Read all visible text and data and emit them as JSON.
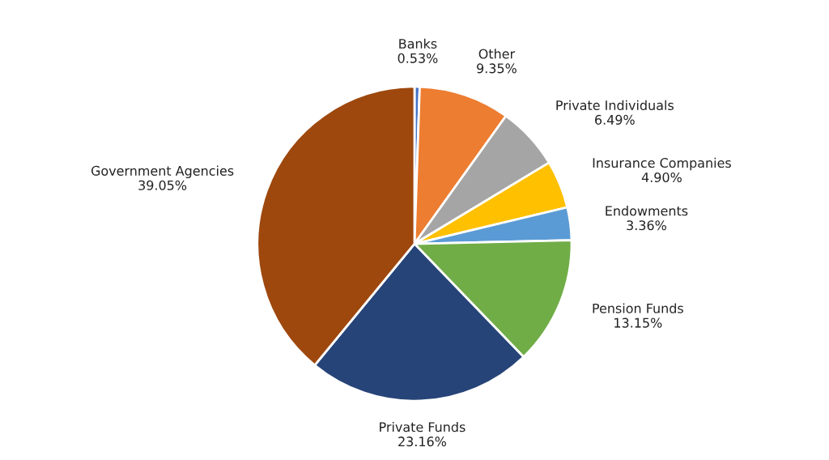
{
  "chart_data": {
    "type": "pie",
    "categories": [
      "Banks",
      "Other",
      "Private Individuals",
      "Insurance Companies",
      "Endowments",
      "Pension Funds",
      "Private Funds",
      "Government Agencies"
    ],
    "values": [
      0.53,
      9.35,
      6.49,
      4.9,
      3.36,
      13.15,
      23.16,
      39.05
    ],
    "value_labels": [
      "0.53%",
      "9.35%",
      "6.49%",
      "4.90%",
      "3.36%",
      "13.15%",
      "23.16%",
      "39.05%"
    ],
    "colors": [
      "#4472c4",
      "#ed7d31",
      "#a5a5a5",
      "#ffc000",
      "#5b9bd5",
      "#70ad47",
      "#264478",
      "#9e480e"
    ]
  }
}
